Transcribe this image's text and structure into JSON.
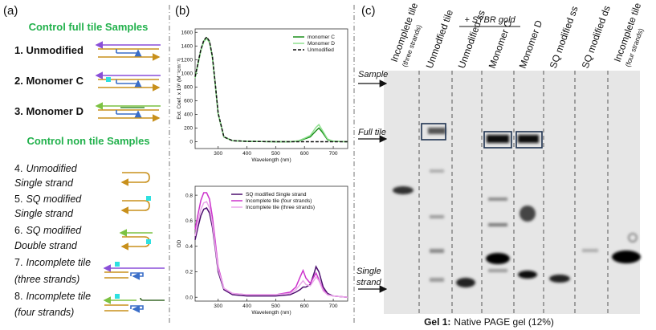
{
  "panel_a": {
    "label": "(a)",
    "full_tile_heading": "Control full tile Samples",
    "full_tile_items": [
      "1. Unmodified",
      "2. Monomer C",
      "3. Monomer D"
    ],
    "non_tile_heading": "Control non tile Samples",
    "non_tile_items": [
      {
        "number": "4.",
        "lines": [
          "Unmodified",
          "Single strand"
        ]
      },
      {
        "number": "5.",
        "lines": [
          "SQ modified",
          "Single strand"
        ]
      },
      {
        "number": "6.",
        "lines": [
          "SQ modified",
          "Double strand"
        ]
      },
      {
        "number": "7.",
        "lines": [
          "Incomplete tile",
          "(three strands)"
        ]
      },
      {
        "number": "8.",
        "lines": [
          "Incomplete tile",
          "(four strands)"
        ]
      }
    ]
  },
  "panel_b": {
    "label": "(b)"
  },
  "chart_data": [
    {
      "type": "line",
      "xlabel": "Wavelength (nm)",
      "ylabel": "Ext. Coef. x 10³ (M⁻¹cm⁻¹)",
      "xlim": [
        220,
        750
      ],
      "xticks": [
        300,
        400,
        500,
        600,
        700
      ],
      "ylim": [
        -100,
        1650
      ],
      "yticks": [
        0,
        200,
        400,
        600,
        800,
        1000,
        1200,
        1400,
        1600
      ],
      "legend": "upper right",
      "x": [
        220,
        230,
        240,
        250,
        260,
        270,
        280,
        290,
        300,
        320,
        350,
        400,
        500,
        550,
        580,
        600,
        620,
        640,
        650,
        660,
        680,
        700,
        750
      ],
      "series": [
        {
          "name": "monomer C",
          "color": "#1a8f1a",
          "dash": false,
          "values": [
            940,
            1140,
            1340,
            1470,
            1520,
            1460,
            1240,
            840,
            410,
            70,
            15,
            5,
            0,
            0,
            10,
            40,
            70,
            160,
            200,
            150,
            30,
            5,
            0
          ]
        },
        {
          "name": "Monomer D",
          "color": "#8fe08f",
          "dash": false,
          "values": [
            930,
            1130,
            1330,
            1460,
            1510,
            1450,
            1230,
            830,
            400,
            70,
            15,
            5,
            0,
            0,
            15,
            50,
            90,
            210,
            250,
            180,
            40,
            5,
            0
          ]
        },
        {
          "name": "Unmodified",
          "color": "#111111",
          "dash": true,
          "values": [
            950,
            1150,
            1350,
            1480,
            1530,
            1470,
            1250,
            850,
            420,
            70,
            15,
            5,
            0,
            0,
            0,
            0,
            0,
            0,
            0,
            0,
            0,
            0,
            0
          ]
        }
      ]
    },
    {
      "type": "line",
      "xlabel": "Wavelength (nm)",
      "ylabel": "OD",
      "xlim": [
        220,
        750
      ],
      "xticks": [
        300,
        400,
        500,
        600,
        700
      ],
      "ylim": [
        -0.03,
        0.87
      ],
      "yticks": [
        {
          "value": 0,
          "label": "0.0"
        },
        0.2,
        0.4,
        0.6,
        0.8
      ],
      "legend": "upper center",
      "x": [
        220,
        230,
        240,
        250,
        260,
        270,
        280,
        290,
        300,
        320,
        350,
        400,
        500,
        550,
        570,
        585,
        595,
        605,
        620,
        635,
        640,
        650,
        665,
        680,
        700,
        750
      ],
      "series": [
        {
          "name": "SQ modified Single strand",
          "color": "#4b0d6e",
          "dash": false,
          "values": [
            0.45,
            0.55,
            0.64,
            0.69,
            0.7,
            0.66,
            0.55,
            0.38,
            0.2,
            0.06,
            0.02,
            0.01,
            0.01,
            0.02,
            0.04,
            0.06,
            0.08,
            0.08,
            0.1,
            0.2,
            0.24,
            0.2,
            0.08,
            0.03,
            0.01,
            0.0
          ]
        },
        {
          "name": "Incomplete tile (four strands)",
          "color": "#cc33cc",
          "dash": false,
          "values": [
            0.53,
            0.65,
            0.76,
            0.82,
            0.82,
            0.77,
            0.63,
            0.44,
            0.24,
            0.07,
            0.03,
            0.02,
            0.02,
            0.04,
            0.08,
            0.16,
            0.21,
            0.15,
            0.11,
            0.17,
            0.19,
            0.14,
            0.06,
            0.02,
            0.01,
            0.0
          ]
        },
        {
          "name": "Incomplete tile (three strands)",
          "color": "#eaa6ea",
          "dash": false,
          "values": [
            0.48,
            0.59,
            0.69,
            0.74,
            0.75,
            0.7,
            0.58,
            0.4,
            0.22,
            0.07,
            0.03,
            0.02,
            0.02,
            0.03,
            0.06,
            0.1,
            0.13,
            0.1,
            0.09,
            0.14,
            0.16,
            0.13,
            0.05,
            0.02,
            0.01,
            0.0
          ]
        }
      ]
    }
  ],
  "panel_c": {
    "label": "(c)",
    "stain_note": "+ SYBR gold",
    "lanes": [
      {
        "label": "Incomplete tile",
        "sub": "(three strands)"
      },
      {
        "label": "Unmodfied tile"
      },
      {
        "label": "Unmodified ss"
      },
      {
        "label": "Monomer C"
      },
      {
        "label": "Monomer D"
      },
      {
        "label": "SQ modified ss"
      },
      {
        "label": "SQ modified ds"
      },
      {
        "label": "Incomplete tile",
        "sub": "(four strands)"
      }
    ],
    "markers": [
      "Sample",
      "Full tile",
      "Single",
      "strand"
    ],
    "caption_bold": "Gel 1:",
    "caption": "Native PAGE gel (12%)"
  }
}
